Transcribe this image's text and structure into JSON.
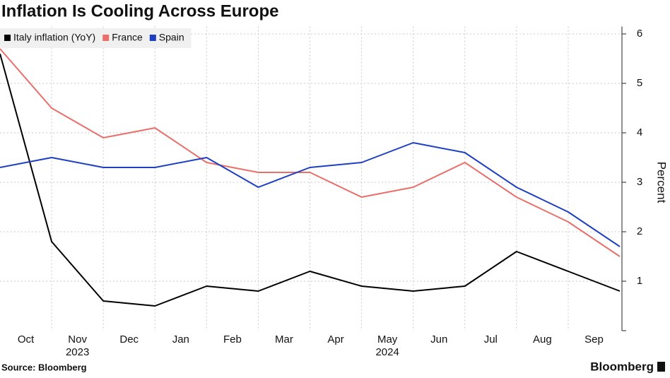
{
  "chart_data": {
    "type": "line",
    "title": "Inflation Is Cooling Across Europe",
    "x": [
      "2023-09",
      "2023-10",
      "2023-11",
      "2023-12",
      "2024-01",
      "2024-02",
      "2024-03",
      "2024-04",
      "2024-05",
      "2024-06",
      "2024-07",
      "2024-08",
      "2024-09"
    ],
    "xticks": [
      {
        "value": "2023-10",
        "label": "Oct"
      },
      {
        "value": "2023-11",
        "label": "Nov"
      },
      {
        "value": "2023-12",
        "label": "Dec"
      },
      {
        "value": "2024-01",
        "label": "Jan"
      },
      {
        "value": "2024-02",
        "label": "Feb"
      },
      {
        "value": "2024-03",
        "label": "Mar"
      },
      {
        "value": "2024-04",
        "label": "Apr"
      },
      {
        "value": "2024-05",
        "label": "May"
      },
      {
        "value": "2024-06",
        "label": "Jun"
      },
      {
        "value": "2024-07",
        "label": "Jul"
      },
      {
        "value": "2024-08",
        "label": "Aug"
      },
      {
        "value": "2024-09",
        "label": "Sep"
      }
    ],
    "year_labels": [
      {
        "value": "2023-11",
        "label": "2023"
      },
      {
        "value": "2024-05",
        "label": "2024"
      }
    ],
    "series": [
      {
        "name": "Italy inflation (YoY)",
        "color": "#000000",
        "values": [
          5.6,
          1.8,
          0.6,
          0.5,
          0.9,
          0.8,
          1.2,
          0.9,
          0.8,
          0.9,
          1.6,
          1.2,
          0.8
        ]
      },
      {
        "name": "France",
        "color": "#ea6f6a",
        "values": [
          5.7,
          4.5,
          3.9,
          4.1,
          3.4,
          3.2,
          3.2,
          2.7,
          2.9,
          3.4,
          2.7,
          2.2,
          1.5
        ]
      },
      {
        "name": "Spain",
        "color": "#1d3fc0",
        "values": [
          3.3,
          3.5,
          3.3,
          3.3,
          3.5,
          2.9,
          3.3,
          3.4,
          3.8,
          3.6,
          2.9,
          2.4,
          1.7
        ]
      }
    ],
    "ylim": [
      0,
      6.15
    ],
    "yticks": [
      1,
      2,
      3,
      4,
      5,
      6
    ],
    "y_axis_label": "Percent",
    "y_axis_side": "right",
    "grid": true,
    "source": "Source: Bloomberg",
    "brand": "Bloomberg"
  }
}
